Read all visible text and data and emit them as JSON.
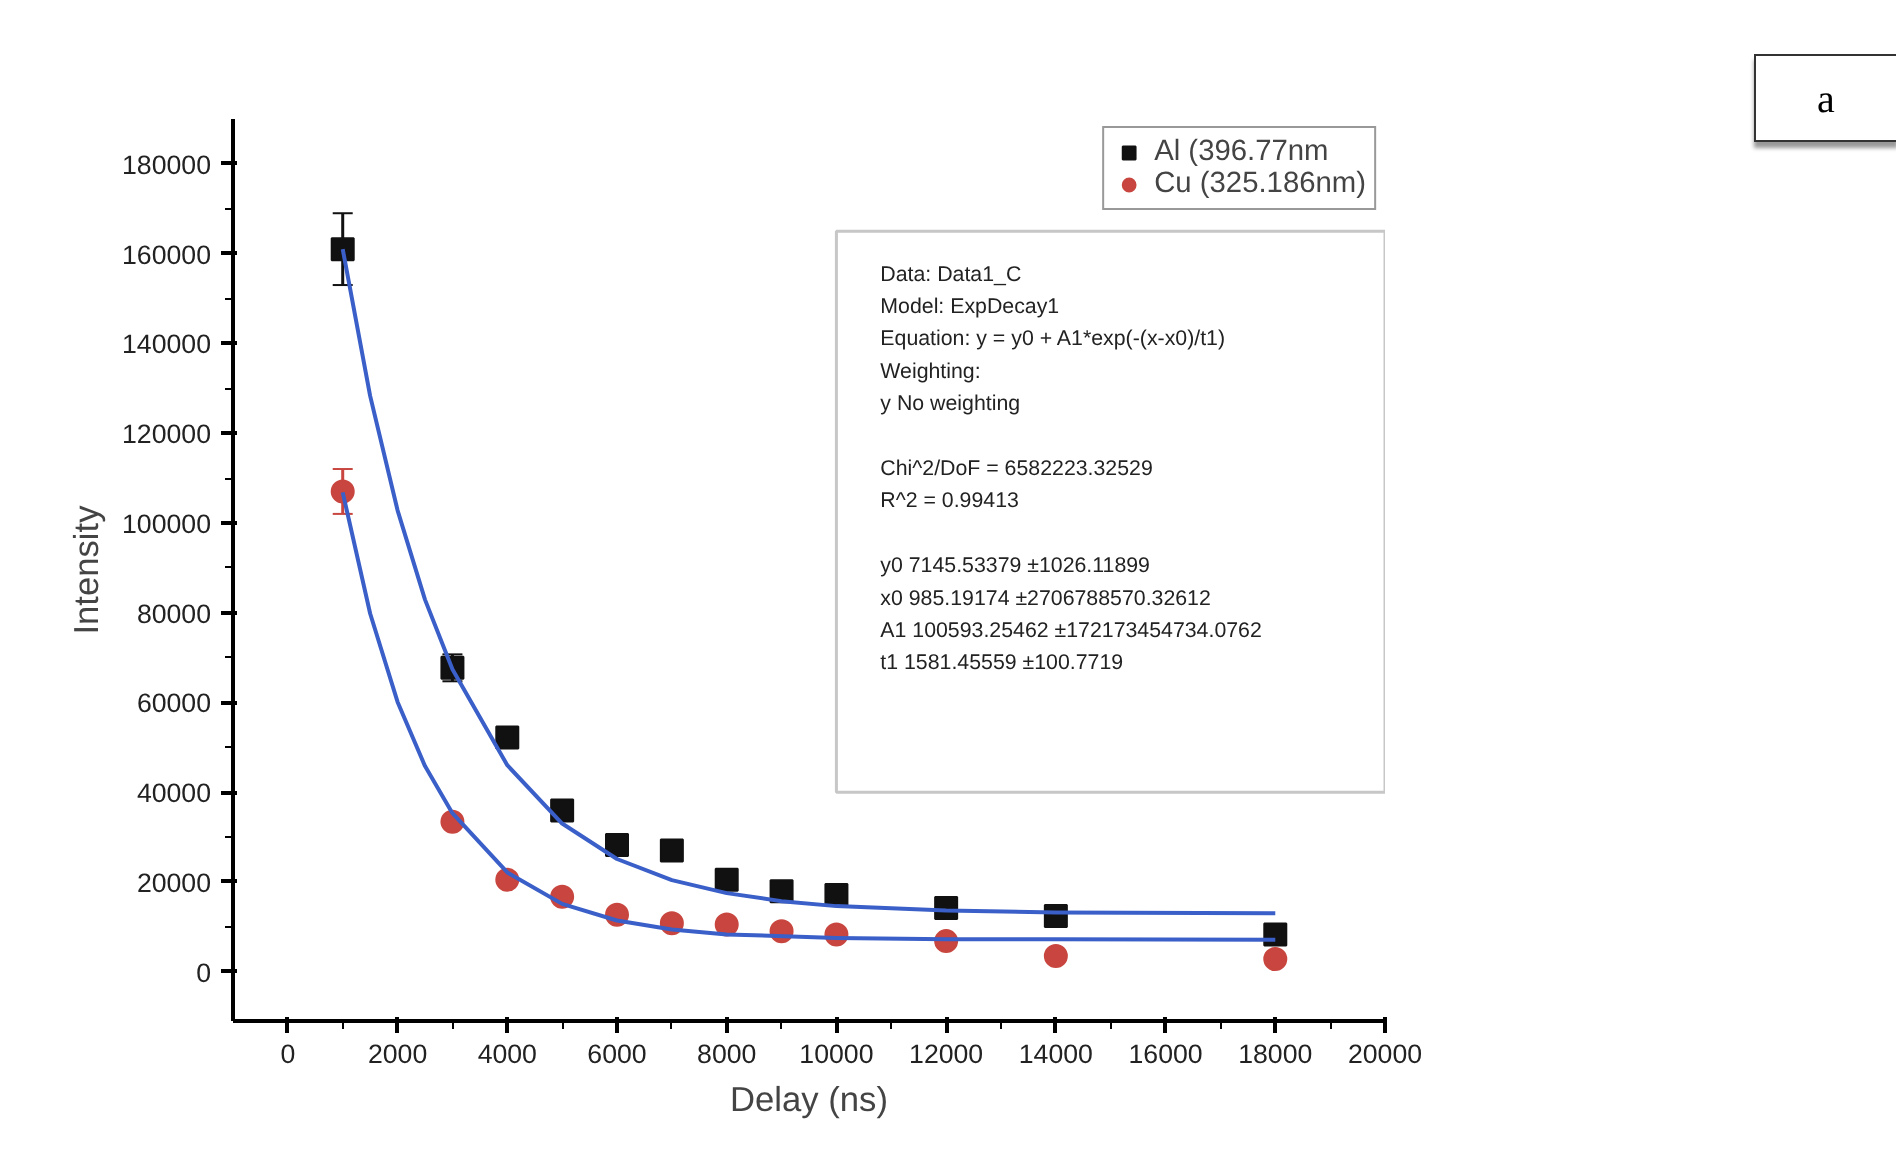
{
  "chart_data": {
    "type": "scatter",
    "xlabel": "Delay (ns)",
    "ylabel": "Intensity",
    "xlim": [
      -1000,
      20000
    ],
    "xticks": [
      0,
      2000,
      4000,
      6000,
      8000,
      10000,
      12000,
      14000,
      16000,
      18000,
      20000
    ],
    "ylim": [
      -11000,
      190000
    ],
    "yticks": [
      0,
      20000,
      40000,
      60000,
      80000,
      100000,
      120000,
      140000,
      160000,
      180000
    ],
    "grid": false,
    "legend": "top right",
    "series": [
      {
        "name": "Al (396.77nm",
        "color": "#111111",
        "marker": "square",
        "x": [
          1000,
          3000,
          4000,
          5000,
          6000,
          7000,
          8000,
          9000,
          10000,
          12000,
          14000,
          18000
        ],
        "values": [
          161000,
          67700,
          52200,
          35900,
          28200,
          27000,
          20500,
          17900,
          17100,
          14200,
          12400,
          8300
        ],
        "errors": [
          8000,
          3000,
          null,
          null,
          null,
          null,
          null,
          null,
          null,
          null,
          null,
          null
        ]
      },
      {
        "name": "Cu (325.186nm)",
        "color": "#c8463f",
        "marker": "circle",
        "x": [
          1000,
          3000,
          4000,
          5000,
          6000,
          7000,
          8000,
          9000,
          10000,
          12000,
          14000,
          18000
        ],
        "values": [
          107000,
          33400,
          20500,
          16700,
          12700,
          10800,
          10500,
          9000,
          8300,
          6800,
          3500,
          2800
        ],
        "errors": [
          5000,
          null,
          null,
          null,
          null,
          null,
          null,
          null,
          null,
          null,
          null,
          null
        ]
      },
      {
        "type": "line",
        "color": "#3a5fc8",
        "x": [
          1000,
          1500,
          2000,
          2500,
          3000,
          4000,
          5000,
          6000,
          7000,
          8000,
          9000,
          10000,
          12000,
          14000,
          18000
        ],
        "values": [
          161000,
          128300,
          102800,
          82900,
          67400,
          46000,
          33000,
          25100,
          20400,
          17500,
          15700,
          14600,
          13600,
          13200,
          13000
        ]
      },
      {
        "type": "line",
        "color": "#3a5fc8",
        "x": [
          1000,
          1500,
          2000,
          2500,
          3000,
          4000,
          5000,
          6000,
          7000,
          8000,
          10000,
          12000,
          14000,
          18000
        ],
        "values": [
          106800,
          79800,
          60100,
          45800,
          35300,
          22100,
          15100,
          11400,
          9400,
          8300,
          7500,
          7200,
          7200,
          7100
        ]
      }
    ],
    "annotations": [
      {
        "text": "Data: Data1_C\nModel: ExpDecay1\nEquation: y = y0 + A1*exp(-(x-x0)/t1)\nWeighting:\ny        No weighting\n\nChi^2/DoF      = 6582223.32529\nR^2    =  0.99413\n\ny0       7145.53379     ±1026.11899\nx0       985.19174       ±2706788570.32612\nA1       100593.25462  ±172173454734.0762\nt1        1581.45559     ±100.7719"
      },
      {
        "text": "a"
      }
    ]
  }
}
